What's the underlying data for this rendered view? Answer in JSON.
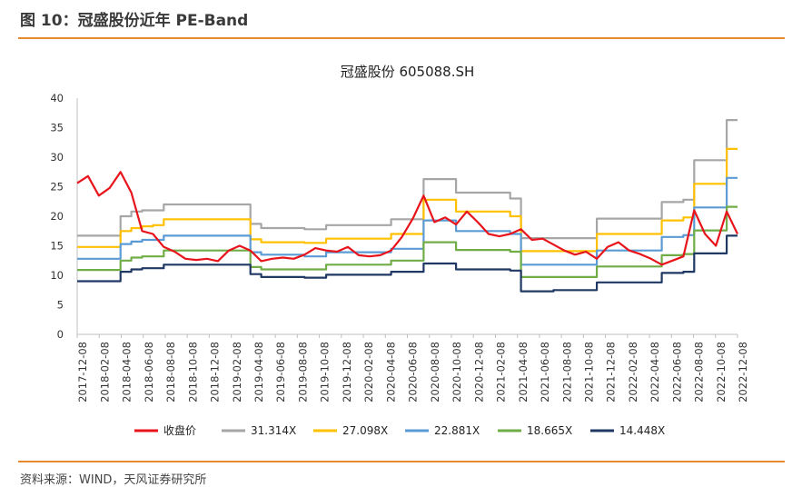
{
  "figure": {
    "title": "图 10：冠盛股份近年 PE-Band",
    "source": "资料来源：WIND，天风证券研究所"
  },
  "colors": {
    "accent_rule": "#e58a2e"
  },
  "chart_data": {
    "type": "line",
    "title": "冠盛股份 605088.SH",
    "xlabel": "",
    "ylabel": "",
    "ylim": [
      0,
      40
    ],
    "yticks": [
      0,
      5,
      10,
      15,
      20,
      25,
      30,
      35,
      40
    ],
    "grid": false,
    "legend_position": "bottom",
    "x_ticks": [
      "2017-12-08",
      "2018-02-08",
      "2018-04-08",
      "2018-06-08",
      "2018-08-08",
      "2018-10-08",
      "2018-12-08",
      "2019-02-08",
      "2019-04-08",
      "2019-06-08",
      "2019-08-08",
      "2019-10-08",
      "2019-12-08",
      "2020-02-08",
      "2020-04-08",
      "2020-06-08",
      "2020-08-08",
      "2020-10-08",
      "2020-12-08",
      "2021-02-08",
      "2021-04-08",
      "2021-06-08",
      "2021-08-08",
      "2021-10-08",
      "2021-12-08",
      "2022-02-08",
      "2022-04-08",
      "2022-06-08",
      "2022-08-08",
      "2022-10-08",
      "2022-12-08"
    ],
    "x": [
      "2017-12",
      "2018-01",
      "2018-02",
      "2018-03",
      "2018-04",
      "2018-05",
      "2018-06",
      "2018-07",
      "2018-08",
      "2018-09",
      "2018-10",
      "2018-11",
      "2018-12",
      "2019-01",
      "2019-02",
      "2019-03",
      "2019-04",
      "2019-05",
      "2019-06",
      "2019-07",
      "2019-08",
      "2019-09",
      "2019-10",
      "2019-11",
      "2019-12",
      "2020-01",
      "2020-02",
      "2020-03",
      "2020-04",
      "2020-05",
      "2020-06",
      "2020-07",
      "2020-08",
      "2020-09",
      "2020-10",
      "2020-11",
      "2020-12",
      "2021-01",
      "2021-02",
      "2021-03",
      "2021-04",
      "2021-05",
      "2021-06",
      "2021-07",
      "2021-08",
      "2021-09",
      "2021-10",
      "2021-11",
      "2021-12",
      "2022-01",
      "2022-02",
      "2022-03",
      "2022-04",
      "2022-05",
      "2022-06",
      "2022-07",
      "2022-08",
      "2022-09",
      "2022-10",
      "2022-11",
      "2022-12",
      "2023-01"
    ],
    "series": [
      {
        "name": "收盘价",
        "color": "#e8141b",
        "values": [
          25.6,
          26.8,
          23.5,
          24.8,
          27.5,
          24.0,
          17.5,
          17.0,
          14.8,
          14.0,
          12.8,
          12.6,
          12.8,
          12.4,
          14.2,
          15.0,
          14.2,
          12.4,
          12.8,
          13.0,
          12.8,
          13.5,
          14.6,
          14.2,
          14.0,
          14.8,
          13.4,
          13.2,
          13.4,
          14.2,
          16.5,
          19.6,
          23.5,
          19.0,
          19.8,
          18.6,
          20.8,
          19.0,
          17.0,
          16.6,
          17.0,
          17.8,
          16.0,
          16.2,
          15.2,
          14.2,
          13.5,
          14.0,
          12.8,
          14.8,
          15.6,
          14.2,
          13.6,
          12.8,
          11.8,
          12.5,
          13.2,
          21.0,
          17.0,
          15.0,
          20.8,
          17.0
        ]
      },
      {
        "name": "31.314X",
        "color": "#a6a6a6",
        "values": [
          16.7,
          16.7,
          16.7,
          16.7,
          20.0,
          20.8,
          21.0,
          21.0,
          22.0,
          22.0,
          22.0,
          22.0,
          22.0,
          22.0,
          22.0,
          22.0,
          18.7,
          18.0,
          18.0,
          18.0,
          18.0,
          17.8,
          17.8,
          18.5,
          18.5,
          18.5,
          18.5,
          18.5,
          18.5,
          19.5,
          19.5,
          19.5,
          26.3,
          26.3,
          26.3,
          24.0,
          24.0,
          24.0,
          24.0,
          24.0,
          23.0,
          16.3,
          16.3,
          16.3,
          16.3,
          16.3,
          16.3,
          16.3,
          19.6,
          19.6,
          19.6,
          19.6,
          19.6,
          19.6,
          22.4,
          22.4,
          22.8,
          29.5,
          29.5,
          29.5,
          36.3,
          36.3
        ]
      },
      {
        "name": "27.098X",
        "color": "#ffc000",
        "values": [
          14.8,
          14.8,
          14.8,
          14.8,
          17.5,
          18.0,
          18.3,
          18.5,
          19.5,
          19.5,
          19.5,
          19.5,
          19.5,
          19.5,
          19.5,
          19.5,
          16.1,
          15.6,
          15.6,
          15.6,
          15.6,
          15.5,
          15.5,
          16.2,
          16.2,
          16.2,
          16.2,
          16.2,
          16.2,
          17.0,
          17.0,
          17.0,
          22.8,
          22.8,
          22.8,
          20.8,
          20.8,
          20.8,
          20.8,
          20.8,
          20.0,
          14.1,
          14.1,
          14.1,
          14.1,
          14.1,
          14.1,
          14.1,
          17.0,
          17.0,
          17.0,
          17.0,
          17.0,
          17.0,
          19.3,
          19.3,
          19.8,
          25.5,
          25.5,
          25.5,
          31.4,
          31.4
        ]
      },
      {
        "name": "22.881X",
        "color": "#5b9bd5",
        "values": [
          12.8,
          12.8,
          12.8,
          12.8,
          15.3,
          15.7,
          16.0,
          16.0,
          16.7,
          16.7,
          16.7,
          16.7,
          16.7,
          16.7,
          16.7,
          16.7,
          13.9,
          13.5,
          13.5,
          13.5,
          13.5,
          13.2,
          13.2,
          13.9,
          13.9,
          13.9,
          13.9,
          13.9,
          13.9,
          14.5,
          14.5,
          14.5,
          19.3,
          19.3,
          19.3,
          17.5,
          17.5,
          17.5,
          17.5,
          17.5,
          17.0,
          11.8,
          11.8,
          11.8,
          11.8,
          11.8,
          11.8,
          11.8,
          14.2,
          14.2,
          14.2,
          14.2,
          14.2,
          14.2,
          16.5,
          16.5,
          16.8,
          21.5,
          21.5,
          21.5,
          26.5,
          26.5
        ]
      },
      {
        "name": "18.665X",
        "color": "#70ad47",
        "values": [
          10.9,
          10.9,
          10.9,
          10.9,
          12.5,
          13.0,
          13.2,
          13.2,
          14.2,
          14.2,
          14.2,
          14.2,
          14.2,
          14.2,
          14.2,
          14.2,
          11.4,
          11.0,
          11.0,
          11.0,
          11.0,
          11.0,
          11.0,
          11.8,
          11.8,
          11.8,
          11.8,
          11.8,
          11.8,
          12.5,
          12.5,
          12.5,
          15.6,
          15.6,
          15.6,
          14.3,
          14.3,
          14.3,
          14.3,
          14.3,
          14.0,
          9.7,
          9.7,
          9.7,
          9.7,
          9.7,
          9.7,
          9.7,
          11.5,
          11.5,
          11.5,
          11.5,
          11.5,
          11.5,
          13.4,
          13.4,
          13.6,
          17.6,
          17.6,
          17.6,
          21.6,
          21.6
        ]
      },
      {
        "name": "14.448X",
        "color": "#1f3864",
        "values": [
          9.0,
          9.0,
          9.0,
          9.0,
          10.6,
          11.0,
          11.2,
          11.2,
          11.8,
          11.8,
          11.8,
          11.8,
          11.8,
          11.8,
          11.8,
          11.8,
          10.2,
          9.7,
          9.7,
          9.7,
          9.7,
          9.6,
          9.6,
          10.1,
          10.1,
          10.1,
          10.1,
          10.1,
          10.1,
          10.6,
          10.6,
          10.6,
          12.0,
          12.0,
          12.0,
          11.0,
          11.0,
          11.0,
          11.0,
          11.0,
          10.8,
          7.3,
          7.3,
          7.3,
          7.5,
          7.5,
          7.5,
          7.5,
          8.8,
          8.8,
          8.8,
          8.8,
          8.8,
          8.8,
          10.4,
          10.4,
          10.6,
          13.7,
          13.7,
          13.7,
          16.7,
          16.7
        ]
      }
    ]
  }
}
